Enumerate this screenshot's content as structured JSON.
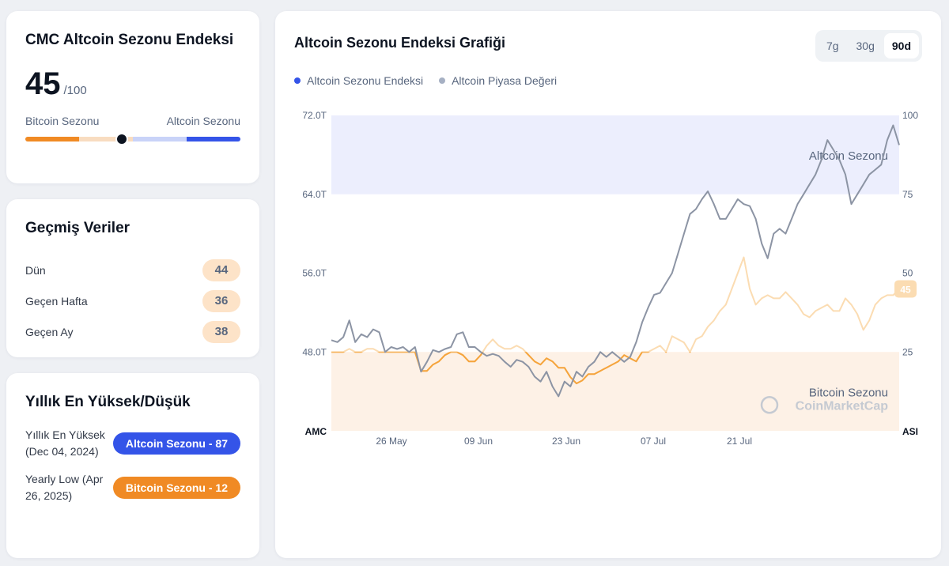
{
  "index_card": {
    "title": "CMC Altcoin Sezonu Endeksi",
    "value": "45",
    "max": "/100",
    "left_label": "Bitcoin Sezonu",
    "right_label": "Altcoin Sezonu",
    "position_percent": 45
  },
  "history": {
    "title": "Geçmiş Veriler",
    "rows": [
      {
        "label": "Dün",
        "value": "44"
      },
      {
        "label": "Geçen Hafta",
        "value": "36"
      },
      {
        "label": "Geçen Ay",
        "value": "38"
      }
    ]
  },
  "yearly": {
    "title": "Yıllık En Yüksek/Düşük",
    "high_label": "Yıllık En Yüksek (Dec 04, 2024)",
    "high_badge": "Altcoin Sezonu - 87",
    "low_label": "Yearly Low (Apr 26, 2025)",
    "low_badge": "Bitcoin Sezonu - 12"
  },
  "chart_card": {
    "title": "Altcoin Sezonu Endeksi Grafiği",
    "ranges": [
      "7g",
      "30g",
      "90d"
    ],
    "active_range": "90d",
    "watermark": "CoinMarketCap"
  },
  "colors": {
    "index_line": "#f5a43c",
    "index_line_light": "#fbdcb2",
    "market_line": "#8c94a4",
    "legend_index": "#3454e8",
    "legend_market": "#a6b0c3",
    "altcoin_zone": "#eceefd",
    "bitcoin_zone": "#fdf1e6"
  },
  "chart_data": {
    "type": "line",
    "x_ticks": [
      "26 May",
      "09 Jun",
      "23 Jun",
      "07 Jul",
      "21 Jul"
    ],
    "left_axis": {
      "label": "AMC",
      "ticks": [
        "48.0T",
        "56.0T",
        "64.0T",
        "72.0T"
      ],
      "range": [
        40,
        72
      ]
    },
    "right_axis": {
      "label": "ASI",
      "ticks": [
        "25",
        "50",
        "75",
        "100"
      ],
      "range": [
        0,
        100
      ]
    },
    "zones": [
      {
        "name": "Altcoin Sezonu",
        "from": 75,
        "to": 100
      },
      {
        "name": "Bitcoin Sezonu",
        "from": 0,
        "to": 25
      }
    ],
    "current_label": "45",
    "series": [
      {
        "name": "Altcoin Sezonu Endeksi",
        "axis": "right",
        "values": [
          25,
          25,
          25,
          26,
          25,
          25,
          26,
          26,
          25,
          25,
          25,
          25,
          25,
          25,
          25,
          19,
          19,
          21,
          22,
          24,
          25,
          25,
          24,
          22,
          22,
          24,
          27,
          29,
          27,
          26,
          26,
          27,
          26,
          24,
          22,
          21,
          23,
          22,
          20,
          20,
          17,
          15,
          16,
          18,
          18,
          19,
          20,
          21,
          22,
          24,
          23,
          22,
          25,
          25,
          26,
          27,
          25,
          30,
          29,
          28,
          25,
          29,
          30,
          33,
          35,
          38,
          40,
          45,
          50,
          55,
          45,
          40,
          42,
          43,
          42,
          42,
          44,
          42,
          40,
          37,
          36,
          38,
          39,
          40,
          38,
          38,
          42,
          40,
          37,
          32,
          35,
          40,
          42,
          43,
          43,
          45
        ]
      },
      {
        "name": "Altcoin Piyasa Değeri",
        "axis": "left",
        "values": [
          49.2,
          49.0,
          49.5,
          51.2,
          49.0,
          49.8,
          49.5,
          50.3,
          50.0,
          48.0,
          48.5,
          48.3,
          48.5,
          48.0,
          48.5,
          46.0,
          47.0,
          48.2,
          48.0,
          48.3,
          48.5,
          49.8,
          50.0,
          48.5,
          48.5,
          48.0,
          47.6,
          47.8,
          47.6,
          47.0,
          46.5,
          47.2,
          47.0,
          46.5,
          45.5,
          45.0,
          46.0,
          44.5,
          43.5,
          45.0,
          44.5,
          46.0,
          45.5,
          46.5,
          47.0,
          48.0,
          47.5,
          48.0,
          47.5,
          47.0,
          47.5,
          49.0,
          51.0,
          52.5,
          53.8,
          54.0,
          55.0,
          56.0,
          58.0,
          60.0,
          62.0,
          62.5,
          63.5,
          64.3,
          63.0,
          61.5,
          61.5,
          62.5,
          63.5,
          63.0,
          62.8,
          61.5,
          59.0,
          57.5,
          60.0,
          60.5,
          60.0,
          61.5,
          63.0,
          64.0,
          65.0,
          66.0,
          67.5,
          69.5,
          68.5,
          67.5,
          66.0,
          63.0,
          64.0,
          65.0,
          66.0,
          66.5,
          67.0,
          69.5,
          71.0,
          69.0
        ]
      }
    ]
  }
}
